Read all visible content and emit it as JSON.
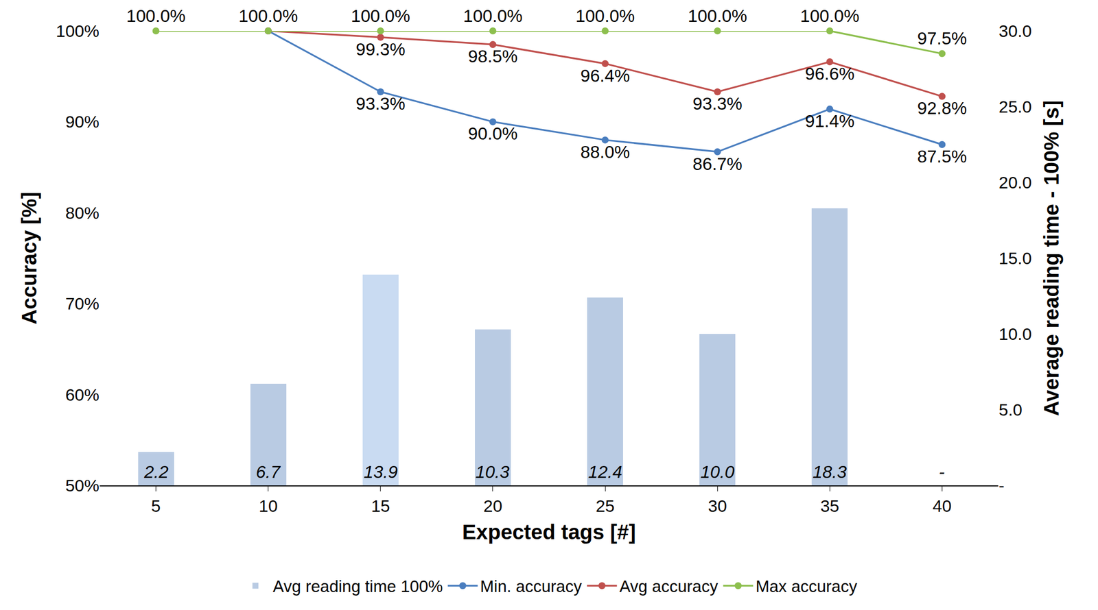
{
  "chart_data": {
    "type": "bar",
    "x_label": "Expected tags [#]",
    "y_label": "Accuracy [%]",
    "y2_label": "Average reading time - 100% [s]",
    "x": [
      5,
      10,
      15,
      20,
      25,
      30,
      35,
      40
    ],
    "xlim": [
      2.5,
      42.5
    ],
    "xticks": [
      5,
      10,
      15,
      20,
      25,
      30,
      35,
      40
    ],
    "ylim": [
      50,
      100
    ],
    "yticks": [
      {
        "value": 50,
        "label": "50%"
      },
      {
        "value": 60,
        "label": "60%"
      },
      {
        "value": 70,
        "label": "70%"
      },
      {
        "value": 80,
        "label": "80%"
      },
      {
        "value": 90,
        "label": "90%"
      },
      {
        "value": 100,
        "label": "100%"
      }
    ],
    "y2lim": [
      0,
      30
    ],
    "y2ticks": [
      {
        "value": 0,
        "label": "-"
      },
      {
        "value": 5,
        "label": "5.0"
      },
      {
        "value": 10,
        "label": "10.0"
      },
      {
        "value": 15,
        "label": "15.0"
      },
      {
        "value": 20,
        "label": "20.0"
      },
      {
        "value": 25,
        "label": "25.0"
      },
      {
        "value": 30,
        "label": "30.0"
      }
    ],
    "grid": false,
    "legend": "bottom",
    "data_labels": true,
    "series": [
      {
        "name": "Avg reading time 100%",
        "type": "bar",
        "axis": "y2",
        "color": "#b9cbe3",
        "colors": [
          "#b9cbe3",
          "#b9cbe3",
          "#c9dbf2",
          "#b9cbe3",
          "#b9cbe3",
          "#b9cbe3",
          "#b9cbe3",
          "#b9cbe3"
        ],
        "values": [
          2.2,
          6.7,
          13.9,
          10.3,
          12.4,
          10.0,
          18.3,
          null
        ],
        "value_labels": [
          "2.2",
          "6.7",
          "13.9",
          "10.3",
          "12.4",
          "10.0",
          "18.3",
          "-"
        ]
      },
      {
        "name": "Min. accuracy",
        "type": "line",
        "color": "#4a7ebf",
        "marker": "circle",
        "values": [
          null,
          100,
          93.3,
          90.0,
          88.0,
          86.7,
          91.4,
          87.5
        ],
        "value_labels": [
          null,
          null,
          "93.3%",
          "90.0%",
          "88.0%",
          "86.7%",
          "91.4%",
          "87.5%"
        ]
      },
      {
        "name": "Avg accuracy",
        "type": "line",
        "color": "#c0504d",
        "marker": "circle",
        "values": [
          null,
          100,
          99.3,
          98.5,
          96.4,
          93.3,
          96.6,
          92.8
        ],
        "value_labels": [
          null,
          null,
          "99.3%",
          "98.5%",
          "96.4%",
          "93.3%",
          "96.6%",
          "92.8%"
        ]
      },
      {
        "name": "Max accuracy",
        "type": "line",
        "color": "#8dbf4e",
        "marker": "circle",
        "values": [
          100,
          100,
          100,
          100,
          100,
          100,
          100,
          97.5
        ],
        "value_labels": [
          "100.0%",
          "100.0%",
          "100.0%",
          "100.0%",
          "100.0%",
          "100.0%",
          "100.0%",
          "97.5%"
        ]
      }
    ]
  }
}
